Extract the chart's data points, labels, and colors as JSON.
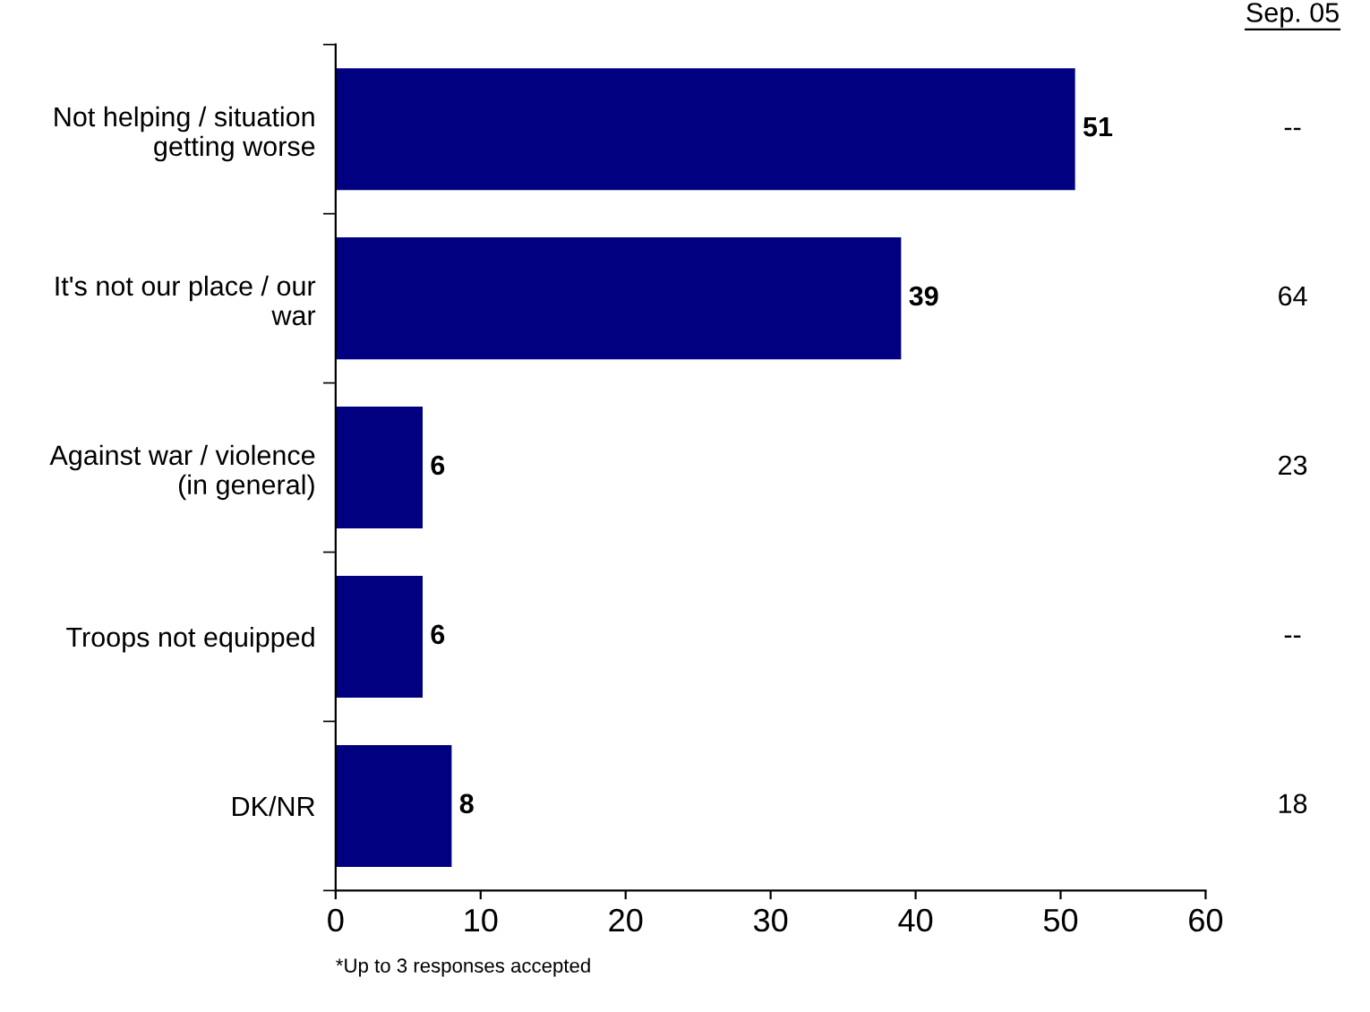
{
  "chart_data": {
    "type": "bar",
    "orientation": "horizontal",
    "categories": [
      "Not helping / situation\ngetting worse",
      "It's not our place / our\nwar",
      "Against war / violence\n(in general)",
      "Troops not equipped",
      "DK/NR"
    ],
    "values": [
      51,
      39,
      6,
      6,
      8
    ],
    "color": "#000080",
    "xlim": [
      0,
      60
    ],
    "xticks": [
      0,
      10,
      20,
      30,
      40,
      50,
      60
    ],
    "data_labels": true,
    "grid": false,
    "legend": false,
    "annotations": [
      "Sep. 05",
      "--",
      "64",
      "23",
      "--",
      "18",
      "*Up to 3 responses accepted"
    ]
  }
}
